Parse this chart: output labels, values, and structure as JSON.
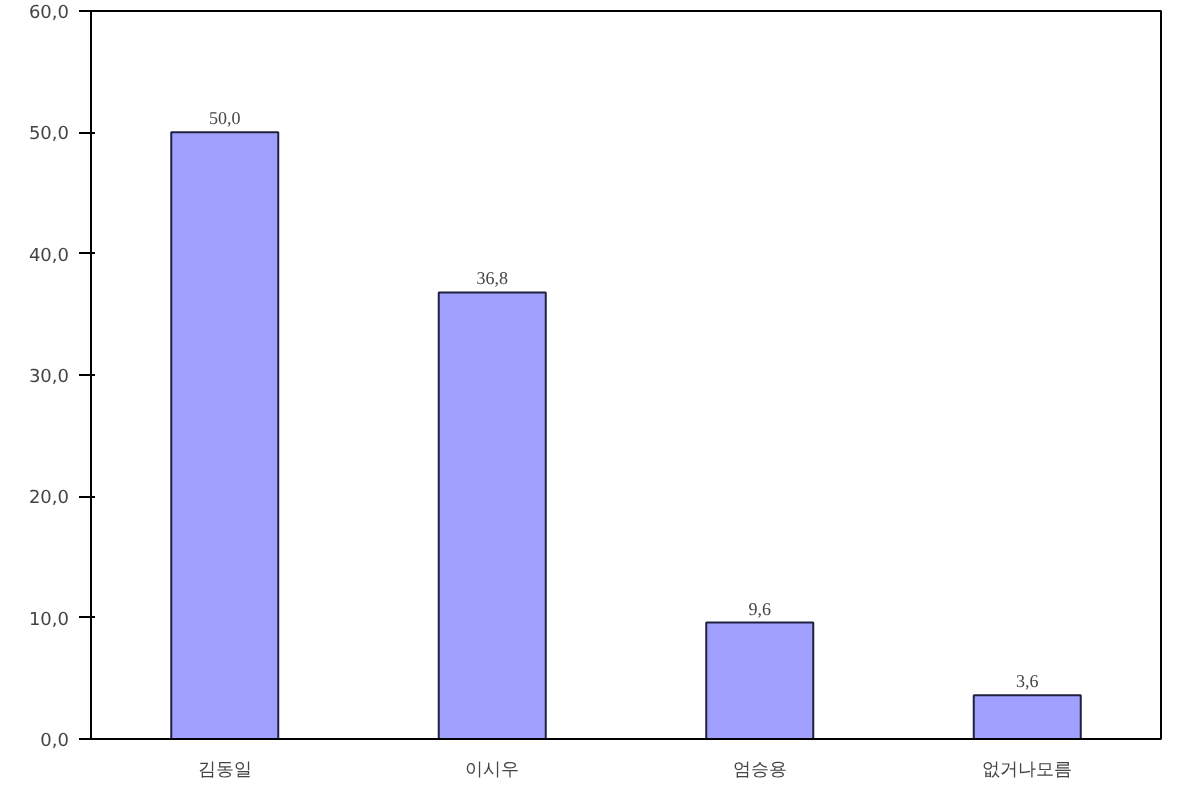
{
  "chart_data": {
    "type": "bar",
    "categories": [
      "김동일",
      "이시우",
      "엄승용",
      "없거나모름"
    ],
    "values": [
      50.0,
      36.8,
      9.6,
      3.6
    ],
    "color": "#a0a0ff",
    "value_labels": [
      "50,0",
      "36,8",
      "9,6",
      "3,6"
    ],
    "ylim": [
      0,
      60
    ],
    "yticks": [
      {
        "value": 0,
        "label": "0,0"
      },
      {
        "value": 10,
        "label": "10,0"
      },
      {
        "value": 20,
        "label": "20,0"
      },
      {
        "value": 30,
        "label": "30,0"
      },
      {
        "value": 40,
        "label": "40,0"
      },
      {
        "value": 50,
        "label": "50,0"
      },
      {
        "value": 60,
        "label": "60,0"
      }
    ],
    "grid": false
  }
}
